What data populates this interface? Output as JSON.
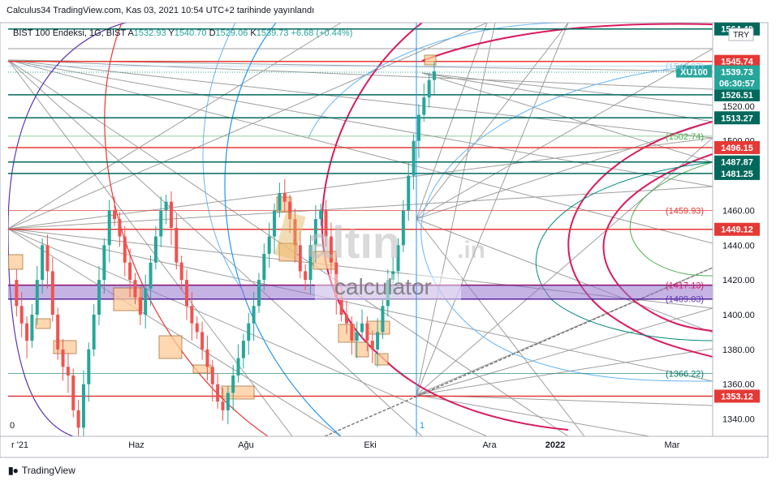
{
  "header": {
    "published": "Calculus34 TradingView.com, Kas 03, 2021 10:54 UTC+2 tarihinde yayınlandı",
    "symbol_line": "BIST 100 Endeksi, 1G, BIST",
    "ohlc": {
      "o_label": "A",
      "o": "1532.93",
      "h_label": "Y",
      "h": "1540.70",
      "l_label": "D",
      "l": "1529.06",
      "c_label": "K",
      "c": "1539.73",
      "change": "+6.68 (+0.44%)"
    }
  },
  "currency_badge": "TRY",
  "watermark": {
    "brand": "altın",
    "suffix": ".in",
    "sub": "calculator"
  },
  "footer": {
    "brand": "TradingView"
  },
  "colors": {
    "up": "#26a69a",
    "down": "#ef5350",
    "red_level": "#e53935",
    "teal_level": "#00695c",
    "magenta": "#d81b60",
    "purple_zone": "#9575cd",
    "orange_box": "#ffcc99"
  },
  "chart_data": {
    "type": "candlestick",
    "symbol": "XU100",
    "ylim": [
      1330,
      1568
    ],
    "y_ticks": [
      1340,
      1360,
      1380,
      1400,
      1420,
      1440,
      1460,
      1500,
      1520
    ],
    "x_labels": [
      "r '21",
      "Haz",
      "Ağu",
      "Eki",
      "Ara",
      "2022",
      "Mar"
    ],
    "x_marker": "1",
    "left_marker": "0",
    "last": {
      "label": "XU100",
      "value": "1539.73",
      "countdown": "06:30:57"
    },
    "levels": [
      {
        "value": 1564.4,
        "label": "1564.40",
        "kind": "teal"
      },
      {
        "value": 1545.74,
        "label": "1545.74",
        "kind": "red"
      },
      {
        "value": 1526.51,
        "label": "1526.51",
        "kind": "teal"
      },
      {
        "value": 1513.27,
        "label": "1513.27",
        "kind": "teal"
      },
      {
        "value": 1496.15,
        "label": "1496.15",
        "kind": "red"
      },
      {
        "value": 1487.87,
        "label": "1487.87",
        "kind": "teal"
      },
      {
        "value": 1481.25,
        "label": "1481.25",
        "kind": "teal"
      },
      {
        "value": 1449.12,
        "label": "1449.12",
        "kind": "red"
      },
      {
        "value": 1353.12,
        "label": "1353.12",
        "kind": "red"
      }
    ],
    "fib_labels": [
      {
        "value": 1542.97,
        "label": "(1542.97)",
        "color": "#90caf9"
      },
      {
        "value": 1502.74,
        "label": "(1502.74)",
        "color": "#4caf50"
      },
      {
        "value": 1459.93,
        "label": "(1459.93)",
        "color": "#e53935"
      },
      {
        "value": 1417.13,
        "label": "(1417.13)",
        "color": "#d81b60"
      },
      {
        "value": 1409.03,
        "label": "(1409.03)",
        "color": "#5e35b1"
      },
      {
        "value": 1366.22,
        "label": "(1366.22)",
        "color": "#00796b"
      }
    ],
    "zone": {
      "from": 1409,
      "to": 1417
    }
  }
}
